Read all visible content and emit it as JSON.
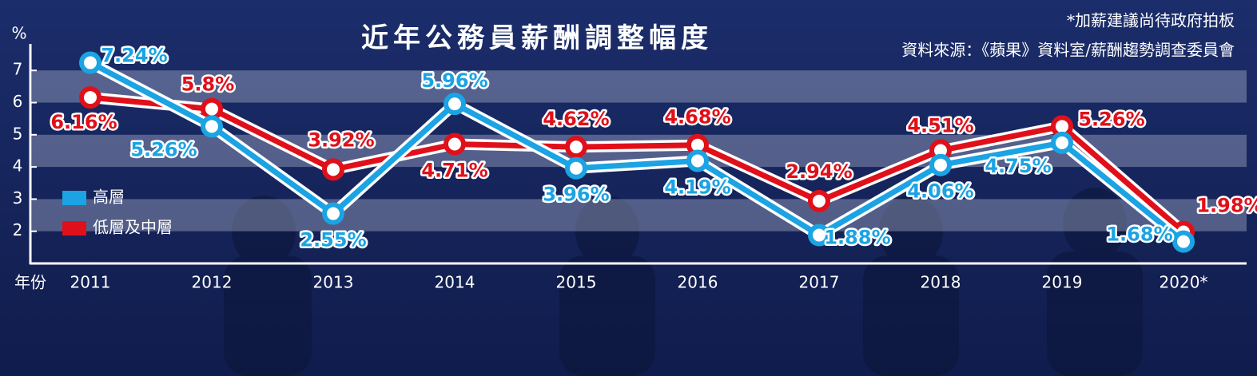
{
  "chart_data": {
    "type": "line",
    "title": "近年公務員薪酬調整幅度",
    "note": "*加薪建議尚待政府拍板",
    "source": "資料來源：《蘋果》資料室/薪酬趨勢調查委員會",
    "x_label": "年份",
    "y_label": "%",
    "categories": [
      "2011",
      "2012",
      "2013",
      "2014",
      "2015",
      "2016",
      "2017",
      "2018",
      "2019",
      "2020*"
    ],
    "series": [
      {
        "name": "高層",
        "color": "#1ba3e3",
        "values": [
          7.24,
          5.26,
          2.55,
          5.96,
          3.96,
          4.19,
          1.88,
          4.06,
          4.75,
          1.68
        ],
        "value_labels": [
          "7.24%",
          "5.26%",
          "2.55%",
          "5.96%",
          "3.96%",
          "4.19%",
          "1.88%",
          "4.06%",
          "4.75%",
          "1.68%"
        ]
      },
      {
        "name": "低層及中層",
        "color": "#e0101a",
        "values": [
          6.16,
          5.8,
          3.92,
          4.71,
          4.62,
          4.68,
          2.94,
          4.51,
          5.26,
          1.98
        ],
        "value_labels": [
          "6.16%",
          "5.8%",
          "3.92%",
          "4.71%",
          "4.62%",
          "4.68%",
          "2.94%",
          "4.51%",
          "5.26%",
          "1.98%"
        ]
      }
    ],
    "ylim": [
      1,
      7.75
    ],
    "yticks": [
      2,
      3,
      4,
      5,
      6,
      7
    ],
    "legend": "left"
  }
}
